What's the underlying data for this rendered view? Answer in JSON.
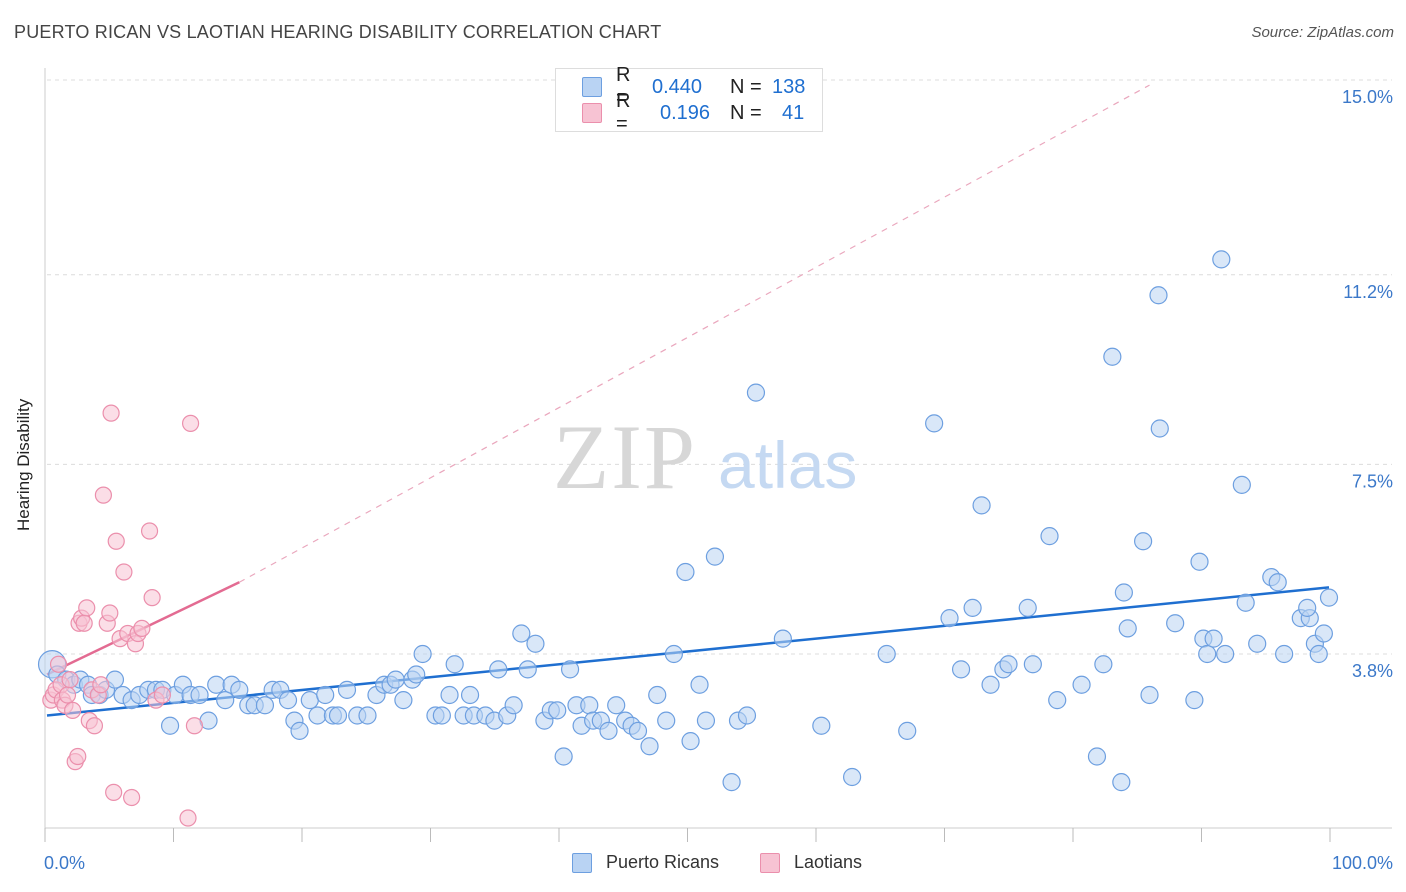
{
  "title": "PUERTO RICAN VS LAOTIAN HEARING DISABILITY CORRELATION CHART",
  "source": "Source: ZipAtlas.com",
  "watermark": {
    "zip": "ZIP",
    "atlas": "atlas"
  },
  "legend": {
    "rows": [
      {
        "r_label": "R =",
        "r_value": "0.440",
        "n_label": "N =",
        "n_value": "138",
        "color": "#9ec3f0"
      },
      {
        "r_label": "R =",
        "r_value": "0.196",
        "n_label": "N =",
        "n_value": "41",
        "color": "#f5b8cb"
      }
    ]
  },
  "bottom_legend": [
    {
      "label": "Puerto Ricans",
      "color": "#9ec3f0"
    },
    {
      "label": "Laotians",
      "color": "#f5b8cb"
    }
  ],
  "colors": {
    "blue_line": "#1f6fd0",
    "blue_fill": "#b9d3f3",
    "blue_stroke": "#6d9fe0",
    "pink_line": "#e36b92",
    "pink_fill": "#f7c3d3",
    "pink_stroke": "#eb8fac",
    "grid": "#dcdcdc",
    "tick_text": "#3b78c9"
  },
  "chart_data": {
    "type": "scatter",
    "title": "PUERTO RICAN VS LAOTIAN HEARING DISABILITY CORRELATION CHART",
    "xlabel": "",
    "ylabel": "Hearing Disability",
    "xlim": [
      0,
      100
    ],
    "ylim": [
      0,
      15.5
    ],
    "x_tick_labels": [
      "0.0%",
      "100.0%"
    ],
    "y_ticks": [
      3.8,
      7.5,
      11.2,
      15.0
    ],
    "y_tick_labels": [
      "3.8%",
      "7.5%",
      "11.2%",
      "15.0%"
    ],
    "grid": true,
    "legend_position": "top-center",
    "series": [
      {
        "name": "Puerto Ricans",
        "trend": {
          "x": [
            0,
            100
          ],
          "y": [
            2.6,
            5.1
          ]
        },
        "points": [
          [
            0.4,
            3.6,
            1.6
          ],
          [
            0.8,
            3.4,
            1
          ],
          [
            1.5,
            3.3,
            1
          ],
          [
            2.1,
            3.2,
            1
          ],
          [
            2.6,
            3.3,
            1
          ],
          [
            3.2,
            3.2,
            1
          ],
          [
            3.5,
            3.0,
            1
          ],
          [
            4.1,
            3.0,
            1
          ],
          [
            4.6,
            3.1,
            1
          ],
          [
            5.3,
            3.3,
            1
          ],
          [
            5.9,
            3.0,
            1
          ],
          [
            6.6,
            2.9,
            1
          ],
          [
            7.2,
            3.0,
            1
          ],
          [
            7.9,
            3.1,
            1
          ],
          [
            8.5,
            3.1,
            1
          ],
          [
            9.0,
            3.1,
            1
          ],
          [
            9.6,
            2.4,
            1
          ],
          [
            10.0,
            3.0,
            1
          ],
          [
            10.6,
            3.2,
            1
          ],
          [
            11.2,
            3.0,
            1
          ],
          [
            11.9,
            3.0,
            1
          ],
          [
            12.6,
            2.5,
            1
          ],
          [
            13.2,
            3.2,
            1
          ],
          [
            13.9,
            2.9,
            1
          ],
          [
            14.4,
            3.2,
            1
          ],
          [
            15.0,
            3.1,
            1
          ],
          [
            15.7,
            2.8,
            1
          ],
          [
            16.2,
            2.8,
            1
          ],
          [
            17.0,
            2.8,
            1
          ],
          [
            17.6,
            3.1,
            1
          ],
          [
            18.2,
            3.1,
            1
          ],
          [
            18.8,
            2.9,
            1
          ],
          [
            19.3,
            2.5,
            1
          ],
          [
            19.7,
            2.3,
            1
          ],
          [
            20.5,
            2.9,
            1
          ],
          [
            21.1,
            2.6,
            1
          ],
          [
            21.7,
            3.0,
            1
          ],
          [
            22.3,
            2.6,
            1
          ],
          [
            22.7,
            2.6,
            1
          ],
          [
            23.4,
            3.1,
            1
          ],
          [
            24.2,
            2.6,
            1
          ],
          [
            25.0,
            2.6,
            1
          ],
          [
            25.7,
            3.0,
            1
          ],
          [
            26.3,
            3.2,
            1
          ],
          [
            26.8,
            3.2,
            1
          ],
          [
            27.2,
            3.3,
            1
          ],
          [
            27.8,
            2.9,
            1
          ],
          [
            28.5,
            3.3,
            1
          ],
          [
            28.8,
            3.4,
            1
          ],
          [
            29.3,
            3.8,
            1
          ],
          [
            30.3,
            2.6,
            1
          ],
          [
            30.8,
            2.6,
            1
          ],
          [
            31.4,
            3.0,
            1
          ],
          [
            31.8,
            3.6,
            1
          ],
          [
            32.5,
            2.6,
            1
          ],
          [
            33.0,
            3.0,
            1
          ],
          [
            33.3,
            2.6,
            1
          ],
          [
            34.2,
            2.6,
            1
          ],
          [
            34.9,
            2.5,
            1
          ],
          [
            35.2,
            3.5,
            1
          ],
          [
            35.9,
            2.6,
            1
          ],
          [
            36.4,
            2.8,
            1
          ],
          [
            37.0,
            4.2,
            1
          ],
          [
            37.5,
            3.5,
            1
          ],
          [
            38.1,
            4.0,
            1
          ],
          [
            38.8,
            2.5,
            1
          ],
          [
            39.3,
            2.7,
            1
          ],
          [
            39.8,
            2.7,
            1
          ],
          [
            40.3,
            1.8,
            1
          ],
          [
            40.8,
            3.5,
            1
          ],
          [
            41.3,
            2.8,
            1
          ],
          [
            41.7,
            2.4,
            1
          ],
          [
            42.3,
            2.8,
            1
          ],
          [
            42.6,
            2.5,
            1
          ],
          [
            43.2,
            2.5,
            1
          ],
          [
            43.8,
            2.3,
            1
          ],
          [
            44.4,
            2.8,
            1
          ],
          [
            45.1,
            2.5,
            1
          ],
          [
            45.6,
            2.4,
            1
          ],
          [
            46.1,
            2.3,
            1
          ],
          [
            47.0,
            2.0,
            1
          ],
          [
            47.6,
            3.0,
            1
          ],
          [
            48.3,
            2.5,
            1
          ],
          [
            48.9,
            3.8,
            1
          ],
          [
            49.8,
            5.4,
            1
          ],
          [
            50.2,
            2.1,
            1
          ],
          [
            50.9,
            3.2,
            1
          ],
          [
            51.4,
            2.5,
            1
          ],
          [
            52.1,
            5.7,
            1
          ],
          [
            53.4,
            1.3,
            1
          ],
          [
            53.9,
            2.5,
            1
          ],
          [
            54.6,
            2.6,
            1
          ],
          [
            55.3,
            8.9,
            1
          ],
          [
            57.4,
            4.1,
            1
          ],
          [
            60.4,
            2.4,
            1
          ],
          [
            62.8,
            1.4,
            1
          ],
          [
            65.5,
            3.8,
            1
          ],
          [
            67.1,
            2.3,
            1
          ],
          [
            69.2,
            8.3,
            1
          ],
          [
            70.4,
            4.5,
            1
          ],
          [
            71.3,
            3.5,
            1
          ],
          [
            72.2,
            4.7,
            1
          ],
          [
            72.9,
            6.7,
            1
          ],
          [
            73.6,
            3.2,
            1
          ],
          [
            74.6,
            3.5,
            1
          ],
          [
            75.0,
            3.6,
            1
          ],
          [
            76.5,
            4.7,
            1
          ],
          [
            76.9,
            3.6,
            1
          ],
          [
            78.2,
            6.1,
            1
          ],
          [
            78.8,
            2.9,
            1
          ],
          [
            80.7,
            3.2,
            1
          ],
          [
            81.9,
            1.8,
            1
          ],
          [
            82.4,
            3.6,
            1
          ],
          [
            83.1,
            9.6,
            1
          ],
          [
            83.8,
            1.3,
            1
          ],
          [
            84.0,
            5.0,
            1
          ],
          [
            84.3,
            4.3,
            1
          ],
          [
            85.5,
            6.0,
            1
          ],
          [
            86.0,
            3.0,
            1
          ],
          [
            86.7,
            10.8,
            1
          ],
          [
            86.8,
            8.2,
            1
          ],
          [
            88.0,
            4.4,
            1
          ],
          [
            89.5,
            2.9,
            1
          ],
          [
            89.9,
            5.6,
            1
          ],
          [
            90.2,
            4.1,
            1
          ],
          [
            90.5,
            3.8,
            1
          ],
          [
            91.0,
            4.1,
            1
          ],
          [
            91.6,
            11.5,
            1
          ],
          [
            91.9,
            3.8,
            1
          ],
          [
            93.2,
            7.1,
            1
          ],
          [
            93.5,
            4.8,
            1
          ],
          [
            94.4,
            4.0,
            1
          ],
          [
            95.5,
            5.3,
            1
          ],
          [
            96.0,
            5.2,
            1
          ],
          [
            96.5,
            3.8,
            1
          ],
          [
            97.8,
            4.5,
            1
          ],
          [
            98.5,
            4.5,
            1
          ],
          [
            98.3,
            4.7,
            1
          ],
          [
            98.9,
            4.0,
            1
          ],
          [
            99.2,
            3.8,
            1
          ],
          [
            99.6,
            4.2,
            1
          ],
          [
            100.0,
            4.9,
            1
          ]
        ]
      },
      {
        "name": "Laotians",
        "trend": {
          "x": [
            0,
            15
          ],
          "y": [
            3.4,
            5.2
          ],
          "dashed_to": [
            86,
            14.9
          ]
        },
        "points": [
          [
            0.3,
            2.9,
            1
          ],
          [
            0.5,
            3.0,
            1
          ],
          [
            0.7,
            3.1,
            1
          ],
          [
            0.9,
            3.6,
            1
          ],
          [
            1.1,
            3.2,
            1
          ],
          [
            1.2,
            2.9,
            1
          ],
          [
            1.4,
            2.8,
            1
          ],
          [
            1.6,
            3.0,
            1
          ],
          [
            1.8,
            3.3,
            1
          ],
          [
            2.0,
            2.7,
            1
          ],
          [
            2.2,
            1.7,
            1
          ],
          [
            2.4,
            1.8,
            1
          ],
          [
            2.5,
            4.4,
            1
          ],
          [
            2.7,
            4.5,
            1
          ],
          [
            2.9,
            4.4,
            1
          ],
          [
            3.1,
            4.7,
            1
          ],
          [
            3.3,
            2.5,
            1
          ],
          [
            3.5,
            3.1,
            1
          ],
          [
            3.7,
            2.4,
            1
          ],
          [
            4.0,
            3.0,
            1
          ],
          [
            4.2,
            3.2,
            1
          ],
          [
            4.4,
            6.9,
            1
          ],
          [
            4.7,
            4.4,
            1
          ],
          [
            4.9,
            4.6,
            1
          ],
          [
            5.0,
            8.5,
            1
          ],
          [
            5.2,
            1.1,
            1
          ],
          [
            5.4,
            6.0,
            1
          ],
          [
            5.7,
            4.1,
            1
          ],
          [
            6.0,
            5.4,
            1
          ],
          [
            6.3,
            4.2,
            1
          ],
          [
            6.6,
            1.0,
            1
          ],
          [
            6.9,
            4.0,
            1
          ],
          [
            7.1,
            4.2,
            1
          ],
          [
            7.4,
            4.3,
            1
          ],
          [
            8.0,
            6.2,
            1
          ],
          [
            8.2,
            4.9,
            1
          ],
          [
            8.5,
            2.9,
            1
          ],
          [
            9.0,
            3.0,
            1
          ],
          [
            11.2,
            8.3,
            1
          ],
          [
            11.5,
            2.4,
            1
          ],
          [
            11.0,
            0.6,
            1
          ]
        ]
      }
    ]
  }
}
